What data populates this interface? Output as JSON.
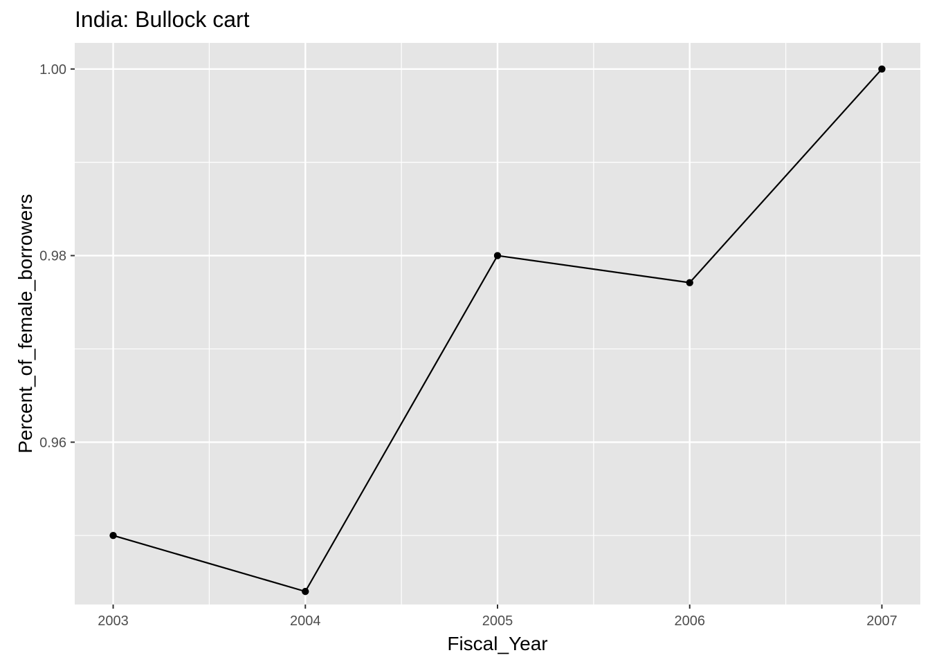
{
  "chart_data": {
    "type": "line",
    "title": "India:  Bullock cart",
    "xlabel": "Fiscal_Year",
    "ylabel": "Percent_of_female_borrowers",
    "x": [
      2003,
      2004,
      2005,
      2006,
      2007
    ],
    "x_tick_labels": [
      "2003",
      "2004",
      "2005",
      "2006",
      "2007"
    ],
    "series": [
      {
        "name": "Percent_of_female_borrowers",
        "values": [
          0.95,
          0.944,
          0.98,
          0.9771,
          1.0
        ]
      }
    ],
    "xlim": [
      2002.8,
      2007.2
    ],
    "ylim": [
      0.9426,
      1.0028
    ],
    "y_ticks": [
      0.96,
      0.98,
      1.0
    ],
    "y_tick_labels": [
      "0.96",
      "0.98",
      "1.00"
    ],
    "y_minor_ticks": [
      0.95,
      0.97,
      0.99
    ],
    "x_minor_ticks": [
      2003.5,
      2004.5,
      2005.5,
      2006.5
    ],
    "grid": true,
    "colors": {
      "panel_background": "#e5e5e5",
      "grid": "#ffffff",
      "line": "#000000",
      "point": "#000000",
      "tick_text": "#4d4d4d",
      "tick_mark": "#333333"
    }
  }
}
